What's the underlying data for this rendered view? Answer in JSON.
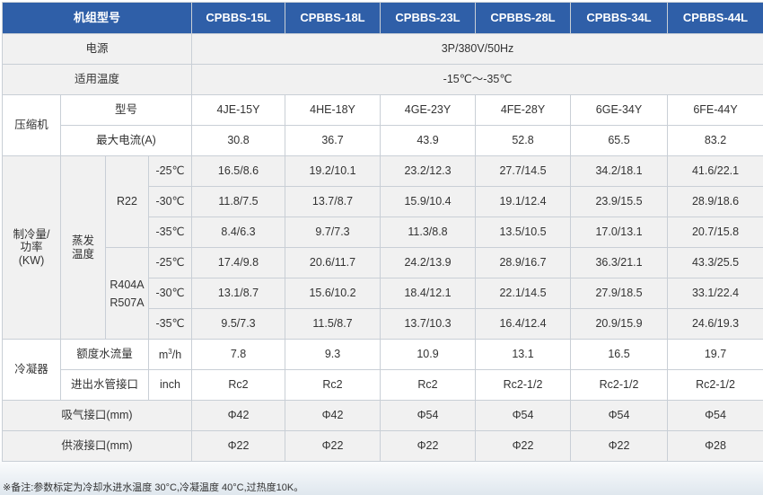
{
  "header": {
    "model_label": "机组型号",
    "models": [
      "CPBBS-15L",
      "CPBBS-18L",
      "CPBBS-23L",
      "CPBBS-28L",
      "CPBBS-34L",
      "CPBBS-44L"
    ]
  },
  "power": {
    "label": "电源",
    "value": "3P/380V/50Hz"
  },
  "temp_range": {
    "label": "适用温度",
    "value": "-15℃～-35℃"
  },
  "compressor": {
    "label": "压缩机",
    "model_label": "型号",
    "models": [
      "4JE-15Y",
      "4HE-18Y",
      "4GE-23Y",
      "4FE-28Y",
      "6GE-34Y",
      "6FE-44Y"
    ],
    "current_label": "最大电流(A)",
    "currents": [
      "30.8",
      "36.7",
      "43.9",
      "52.8",
      "65.5",
      "83.2"
    ]
  },
  "capacity": {
    "label": "制冷量/功率(KW)",
    "evap_label": "蒸发温度",
    "r22": {
      "label": "R22",
      "rows": [
        {
          "temp": "-25℃",
          "values": [
            "16.5/8.6",
            "19.2/10.1",
            "23.2/12.3",
            "27.7/14.5",
            "34.2/18.1",
            "41.6/22.1"
          ]
        },
        {
          "temp": "-30℃",
          "values": [
            "11.8/7.5",
            "13.7/8.7",
            "15.9/10.4",
            "19.1/12.4",
            "23.9/15.5",
            "28.9/18.6"
          ]
        },
        {
          "temp": "-35℃",
          "values": [
            "8.4/6.3",
            "9.7/7.3",
            "11.3/8.8",
            "13.5/10.5",
            "17.0/13.1",
            "20.7/15.8"
          ]
        }
      ]
    },
    "r404": {
      "label_line1": "R404A",
      "label_line2": "R507A",
      "rows": [
        {
          "temp": "-25℃",
          "values": [
            "17.4/9.8",
            "20.6/11.7",
            "24.2/13.9",
            "28.9/16.7",
            "36.3/21.1",
            "43.3/25.5"
          ]
        },
        {
          "temp": "-30℃",
          "values": [
            "13.1/8.7",
            "15.6/10.2",
            "18.4/12.1",
            "22.1/14.5",
            "27.9/18.5",
            "33.1/22.4"
          ]
        },
        {
          "temp": "-35℃",
          "values": [
            "9.5/7.3",
            "11.5/8.7",
            "13.7/10.3",
            "16.4/12.4",
            "20.9/15.9",
            "24.6/19.3"
          ]
        }
      ]
    }
  },
  "condenser": {
    "label": "冷凝器",
    "flow_label": "额度水流量",
    "flow_unit_base": "m",
    "flow_unit_sup": "3",
    "flow_unit_tail": "/h",
    "flows": [
      "7.8",
      "9.3",
      "10.9",
      "13.1",
      "16.5",
      "19.7"
    ],
    "pipe_label": "进出水管接口",
    "pipe_unit": "inch",
    "pipes": [
      "Rc2",
      "Rc2",
      "Rc2",
      "Rc2-1/2",
      "Rc2-1/2",
      "Rc2-1/2"
    ]
  },
  "suction": {
    "label": "吸气接口(mm)",
    "values": [
      "Φ42",
      "Φ42",
      "Φ54",
      "Φ54",
      "Φ54",
      "Φ54"
    ]
  },
  "liquid": {
    "label": "供液接口(mm)",
    "values": [
      "Φ22",
      "Φ22",
      "Φ22",
      "Φ22",
      "Φ22",
      "Φ28"
    ]
  },
  "note": "※备注:参数标定为冷却水进水温度 30°C,冷凝温度 40°C,过热度10K。",
  "colors": {
    "header_bg": "#2f5fa8",
    "label_bg": "#f1f1f1",
    "border": "#c9cfd6"
  }
}
